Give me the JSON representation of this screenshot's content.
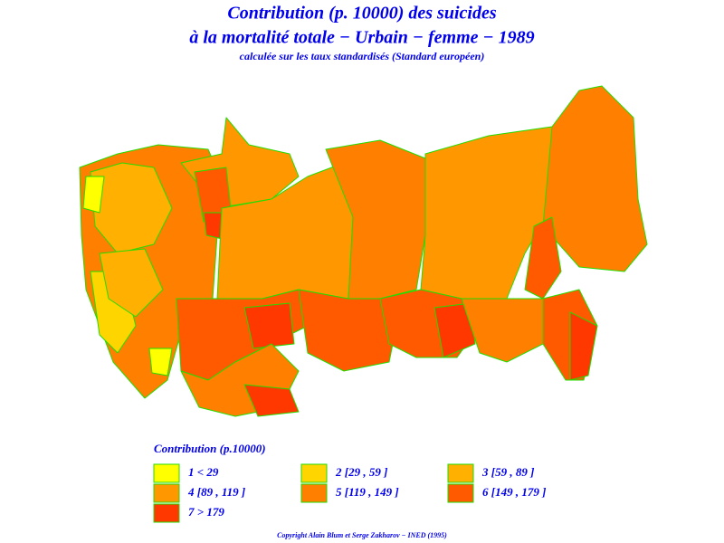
{
  "header": {
    "title_lines": [
      "Contribution (p. 10000) des suicides",
      "à la mortalité totale − Urbain − femme − 1989"
    ],
    "subtitle": "calculée sur les taux standardisés (Standard européen)"
  },
  "legend": {
    "title": "Contribution (p.10000)",
    "items": [
      {
        "label": "1 < 29",
        "color": "#ffff00"
      },
      {
        "label": "2 [29 , 59 ]",
        "color": "#ffd500"
      },
      {
        "label": "3 [59 , 89 ]",
        "color": "#ffb000"
      },
      {
        "label": "4 [89 , 119 ]",
        "color": "#ff9800"
      },
      {
        "label": "5 [119 , 149 ]",
        "color": "#ff7f00"
      },
      {
        "label": "6 [149 , 179 ]",
        "color": "#ff5a00"
      },
      {
        "label": "7 > 179",
        "color": "#ff3800"
      }
    ]
  },
  "footer": {
    "copyright": "Copyright Alain Blum et Serge Zakharov − INED (1995)"
  }
}
